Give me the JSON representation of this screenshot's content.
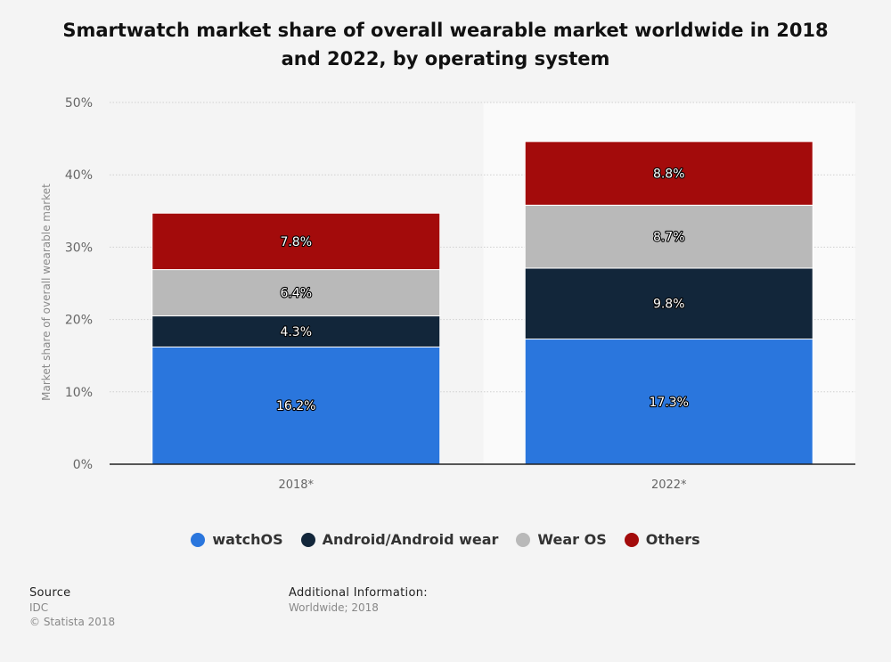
{
  "chart_data": {
    "type": "bar",
    "stacked": true,
    "title": "Smartwatch market share of overall wearable market worldwide in 2018 and 2022, by operating system",
    "ylabel": "Market share of overall wearable market",
    "xlabel": "",
    "categories": [
      "2018*",
      "2022*"
    ],
    "ylim": [
      0,
      50
    ],
    "yticks": [
      "0%",
      "10%",
      "20%",
      "30%",
      "40%",
      "50%"
    ],
    "grid": true,
    "legend_position": "bottom",
    "series": [
      {
        "name": "watchOS",
        "color": "#2a76dd",
        "values": [
          16.2,
          17.3
        ],
        "labels": [
          "16.2%",
          "17.3%"
        ]
      },
      {
        "name": "Android/Android wear",
        "color": "#12263a",
        "values": [
          4.3,
          9.8
        ],
        "labels": [
          "4.3%",
          "9.8%"
        ]
      },
      {
        "name": "Wear OS",
        "color": "#b9b9b9",
        "values": [
          6.4,
          8.7
        ],
        "labels": [
          "6.4%",
          "8.7%"
        ]
      },
      {
        "name": "Others",
        "color": "#a30b0b",
        "values": [
          7.8,
          8.8
        ],
        "labels": [
          "7.8%",
          "8.8%"
        ]
      }
    ]
  },
  "footer": {
    "source_heading": "Source",
    "source_name": "IDC",
    "copyright": "© Statista 2018",
    "info_heading": "Additional Information:",
    "info_text": "Worldwide; 2018"
  }
}
